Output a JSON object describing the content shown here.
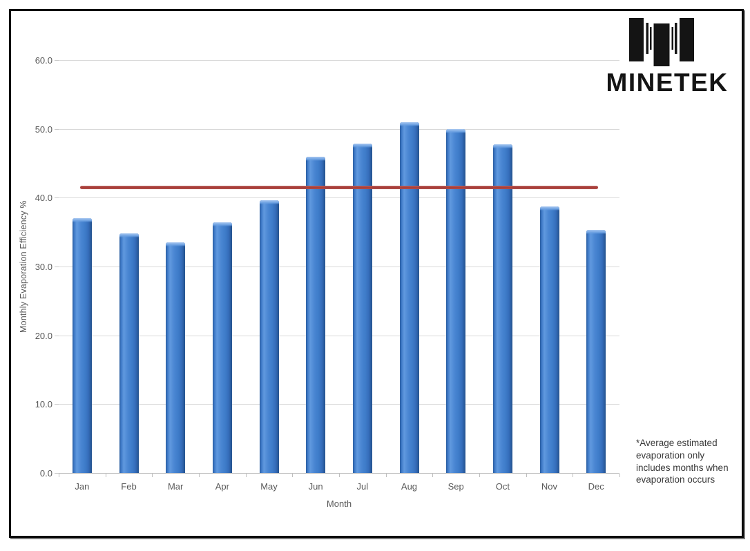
{
  "page": {
    "background": "#ffffff",
    "frame_border_color": "#0b0b0b"
  },
  "logo": {
    "brand": "MINETEK",
    "mark": "minetek-vertical-bars-monogram",
    "color": "#141414"
  },
  "note": {
    "lines": [
      "*Average estimated",
      "evaporation only",
      "includes months when",
      "evaporation occurs"
    ]
  },
  "chart_data": {
    "type": "bar",
    "title": "",
    "xlabel": "Month",
    "ylabel": "Monthly Evaporation Efficiency %",
    "categories": [
      "Jan",
      "Feb",
      "Mar",
      "Apr",
      "May",
      "Jun",
      "Jul",
      "Aug",
      "Sep",
      "Oct",
      "Nov",
      "Dec"
    ],
    "series": [
      {
        "name": "Monthly Evaporation Efficiency %",
        "type": "bar",
        "values": [
          37.0,
          34.8,
          33.5,
          36.4,
          39.6,
          46.0,
          47.9,
          51.0,
          50.0,
          47.8,
          38.7,
          35.3
        ]
      },
      {
        "name": "Average estimated evaporation*",
        "type": "line",
        "value": 41.5
      }
    ],
    "ylim": [
      0,
      60
    ],
    "ytick_step": 10,
    "ytick_labels": [
      "0.0",
      "10.0",
      "20.0",
      "30.0",
      "40.0",
      "50.0",
      "60.0"
    ],
    "grid": true,
    "legend": "none",
    "colors": {
      "bar": "#3e7cc9",
      "bar_edge": "#24528d",
      "average_line": "#a93f3b",
      "gridline": "#d9d9d9",
      "axis_text": "#595959"
    }
  }
}
